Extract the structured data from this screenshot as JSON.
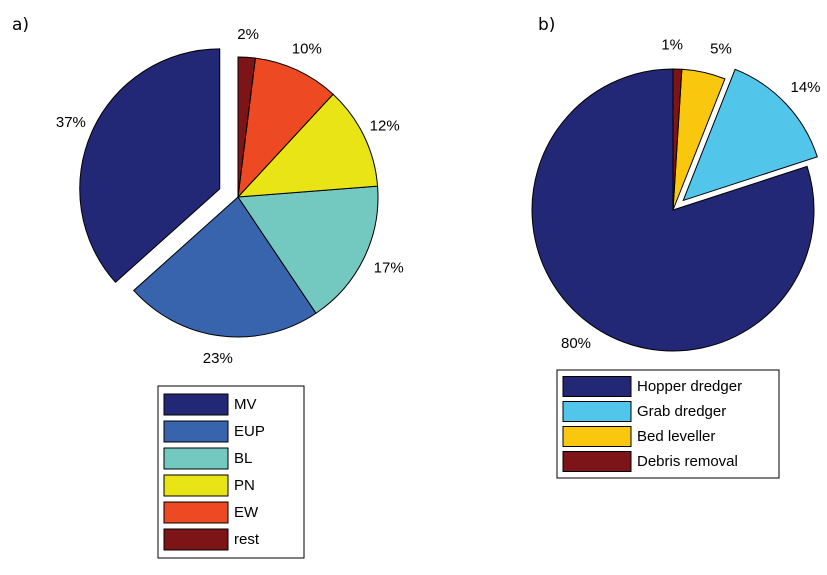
{
  "chart_data": [
    {
      "type": "pie",
      "panel_label": "a)",
      "slices": [
        {
          "name": "MV",
          "value": 37,
          "label": "37%",
          "color": "#232876",
          "exploded": true
        },
        {
          "name": "EUP",
          "value": 23,
          "label": "23%",
          "color": "#3863ad",
          "exploded": false
        },
        {
          "name": "BL",
          "value": 17,
          "label": "17%",
          "color": "#73c8bf",
          "exploded": false
        },
        {
          "name": "PN",
          "value": 12,
          "label": "12%",
          "color": "#e8e415",
          "exploded": false
        },
        {
          "name": "EW",
          "value": 10,
          "label": "10%",
          "color": "#ed4a24",
          "exploded": false
        },
        {
          "name": "rest",
          "value": 2,
          "label": "2%",
          "color": "#7d1417",
          "exploded": false
        }
      ],
      "legend_position": "bottom"
    },
    {
      "type": "pie",
      "panel_label": "b)",
      "slices": [
        {
          "name": "Hopper dredger",
          "value": 80,
          "label": "80%",
          "color": "#232876",
          "exploded": false
        },
        {
          "name": "Grab dredger",
          "value": 14,
          "label": "14%",
          "color": "#52c6ea",
          "exploded": true
        },
        {
          "name": "Bed leveller",
          "value": 5,
          "label": "5%",
          "color": "#f9c70e",
          "exploded": false
        },
        {
          "name": "Debris removal",
          "value": 1,
          "label": "1%",
          "color": "#7d1417",
          "exploded": false
        }
      ],
      "legend_position": "bottom"
    }
  ]
}
